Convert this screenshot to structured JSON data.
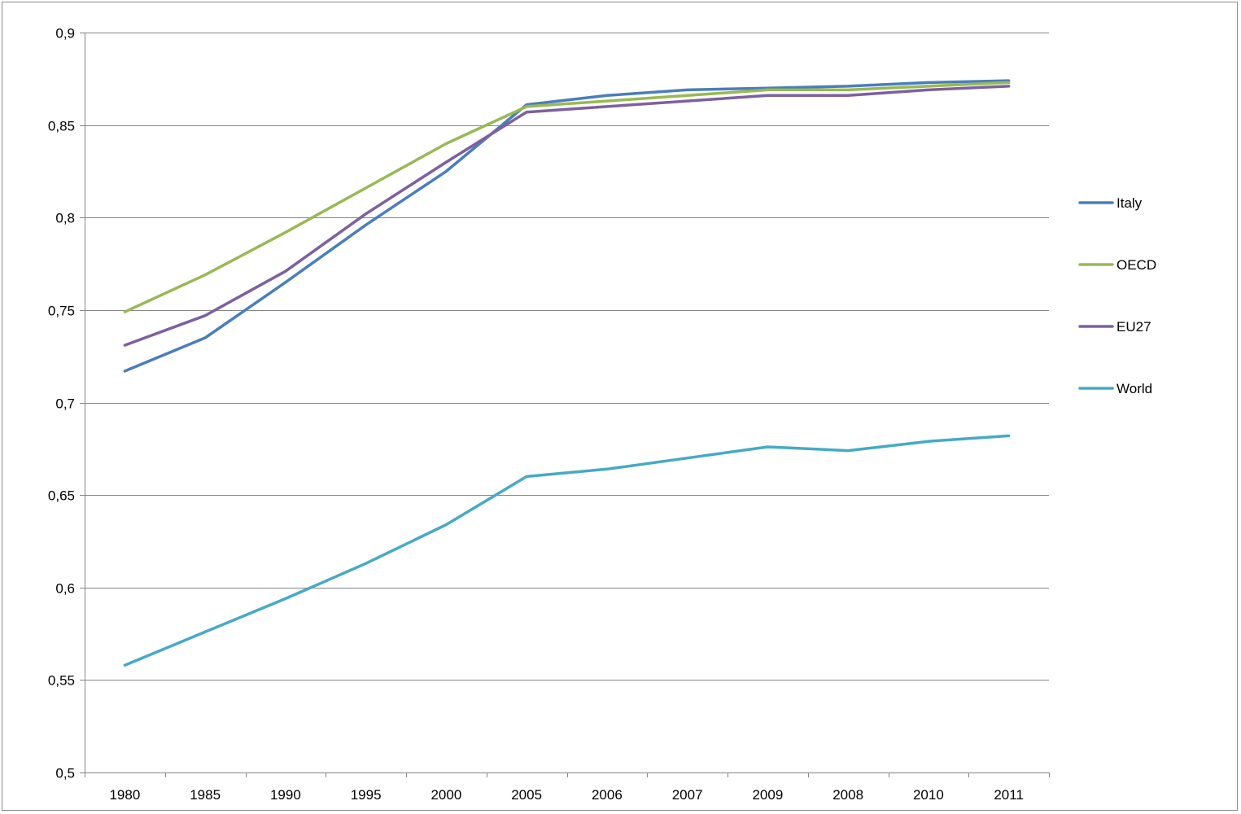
{
  "chart_data": {
    "type": "line",
    "title": "",
    "xlabel": "",
    "ylabel": "",
    "categories": [
      "1980",
      "1985",
      "1990",
      "1995",
      "2000",
      "2005",
      "2006",
      "2007",
      "2009",
      "2008",
      "2010",
      "2011"
    ],
    "ylim": [
      0.5,
      0.9
    ],
    "yticks": [
      0.5,
      0.55,
      0.6,
      0.65,
      0.7,
      0.75,
      0.8,
      0.85,
      0.9
    ],
    "ytick_labels": [
      "0,5",
      "0,55",
      "0,6",
      "0,65",
      "0,7",
      "0,75",
      "0,8",
      "0,85",
      "0,9"
    ],
    "grid": "horizontal",
    "legend_position": "right",
    "series": [
      {
        "name": "Italy",
        "color": "#4a7ebb",
        "values": [
          0.717,
          0.735,
          0.765,
          0.796,
          0.825,
          0.861,
          0.866,
          0.869,
          0.87,
          0.871,
          0.873,
          0.874
        ]
      },
      {
        "name": "OECD",
        "color": "#98b954",
        "values": [
          0.749,
          0.769,
          0.792,
          0.816,
          0.84,
          0.86,
          0.863,
          0.866,
          0.869,
          0.869,
          0.871,
          0.873
        ]
      },
      {
        "name": "EU27",
        "color": "#7d60a0",
        "values": [
          0.731,
          0.747,
          0.771,
          0.802,
          0.83,
          0.857,
          0.86,
          0.863,
          0.866,
          0.866,
          0.869,
          0.871
        ]
      },
      {
        "name": "World",
        "color": "#46aac5",
        "values": [
          0.558,
          0.576,
          0.594,
          0.613,
          0.634,
          0.66,
          0.664,
          0.67,
          0.676,
          0.674,
          0.679,
          0.682
        ]
      }
    ]
  }
}
